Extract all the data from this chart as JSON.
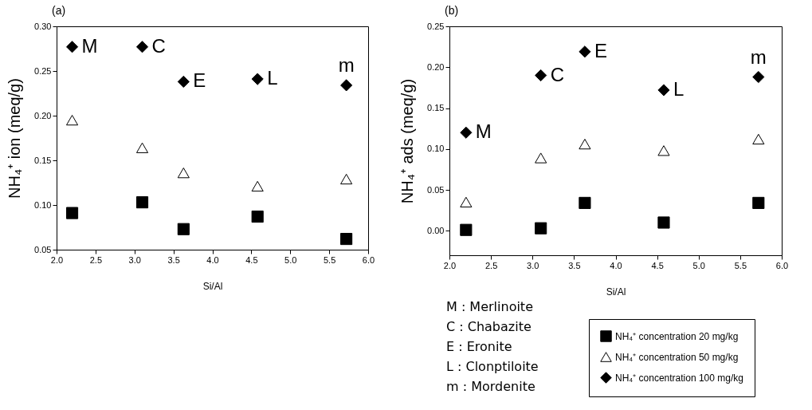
{
  "chart_data": [
    {
      "type": "scatter",
      "title": "(a)",
      "xlabel": "Si/Al",
      "ylabel": "NH₄⁺ ion (meq/g)",
      "x": [
        2.2,
        3.1,
        3.63,
        4.58,
        5.72
      ],
      "xlim": [
        2.0,
        6.0
      ],
      "xticks": [
        {
          "value": 2,
          "label": "2.0"
        },
        2.5,
        {
          "value": 3,
          "label": "3.0"
        },
        3.5,
        {
          "value": 4,
          "label": "4.0"
        },
        4.5,
        {
          "value": 5,
          "label": "5.0"
        },
        5.5,
        {
          "value": 6,
          "label": "6.0"
        }
      ],
      "ylim": [
        0.05,
        0.3
      ],
      "yticks": [
        0.05,
        {
          "value": 0.1,
          "label": "0.10"
        },
        0.15,
        {
          "value": 0.2,
          "label": "0.20"
        },
        0.25,
        {
          "value": 0.3,
          "label": "0.30"
        }
      ],
      "grid": false,
      "legend": false,
      "series": [
        {
          "color": "#000000",
          "marker": "square",
          "values": [
            0.091,
            0.103,
            0.073,
            0.087,
            0.062
          ]
        },
        {
          "color": "#ffffff",
          "marker": "triangle",
          "values": [
            0.195,
            0.164,
            0.136,
            0.121,
            0.129
          ]
        },
        {
          "color": "#000000",
          "marker": "diamond",
          "values": [
            0.277,
            0.277,
            0.238,
            0.241,
            0.234
          ]
        }
      ],
      "annotations": [
        {
          "text": "M",
          "x": 2.2,
          "y": 0.277
        },
        {
          "text": "C",
          "x": 3.1,
          "y": 0.277
        },
        {
          "text": "E",
          "x": 3.63,
          "y": 0.238
        },
        {
          "text": "L",
          "x": 4.58,
          "y": 0.241
        },
        {
          "text": "m",
          "x": 5.72,
          "y": 0.234
        }
      ]
    },
    {
      "type": "scatter",
      "title": "(b)",
      "xlabel": "Si/Al",
      "ylabel": "NH₄⁺ ads (meq/g)",
      "x": [
        2.2,
        3.1,
        3.63,
        4.58,
        5.72
      ],
      "xlim": [
        2.0,
        6.0
      ],
      "xticks": [
        {
          "value": 2,
          "label": "2.0"
        },
        2.5,
        {
          "value": 3,
          "label": "3.0"
        },
        3.5,
        {
          "value": 4,
          "label": "4.0"
        },
        4.5,
        {
          "value": 5,
          "label": "5.0"
        },
        5.5,
        {
          "value": 6,
          "label": "6.0"
        }
      ],
      "ylim": [
        -0.03,
        0.25
      ],
      "yticks": [
        {
          "value": 0,
          "label": "0.00"
        },
        0.05,
        {
          "value": 0.1,
          "label": "0.10"
        },
        0.15,
        {
          "value": 0.2,
          "label": "0.20"
        },
        0.25
      ],
      "grid": false,
      "legend": "bottom right",
      "series": [
        {
          "name": "NH₄⁺ concentration 20 mg/kg",
          "color": "#000000",
          "marker": "square",
          "values": [
            0.001,
            0.003,
            0.034,
            0.01,
            0.034
          ]
        },
        {
          "name": "NH₄⁺ concentration 50 mg/kg",
          "color": "#ffffff",
          "marker": "triangle",
          "values": [
            0.035,
            0.089,
            0.106,
            0.098,
            0.112
          ]
        },
        {
          "name": "NH₄⁺ concentration 100 mg/kg",
          "color": "#000000",
          "marker": "diamond",
          "values": [
            0.12,
            0.19,
            0.219,
            0.172,
            0.188
          ]
        }
      ],
      "annotations": [
        {
          "text": "M",
          "x": 2.2,
          "y": 0.12
        },
        {
          "text": "C",
          "x": 3.1,
          "y": 0.19
        },
        {
          "text": "E",
          "x": 3.63,
          "y": 0.219
        },
        {
          "text": "L",
          "x": 4.58,
          "y": 0.172
        },
        {
          "text": "m",
          "x": 5.72,
          "y": 0.188
        },
        "M : Merlinoite",
        "C : Chabazite",
        "E : Eronite",
        "L : Clonptiloite",
        "m : Mordenite"
      ]
    }
  ]
}
